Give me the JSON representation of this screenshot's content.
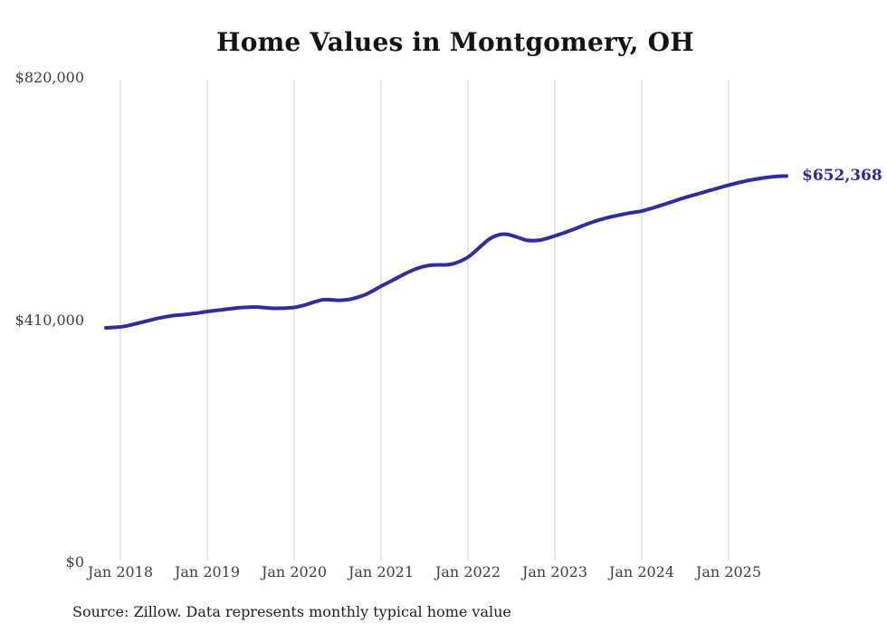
{
  "title": "Home Values in Montgomery, OH",
  "end_label": "$652,368",
  "source_note": "Source: Zillow. Data represents monthly typical home value",
  "colors": {
    "line": "#312d9b",
    "grid": "#cccccc",
    "tick_text": "#3f3f3f",
    "title_text": "#131313",
    "end_label_text": "#2e2a98",
    "background": "#ffffff"
  },
  "chart_data": {
    "type": "line",
    "title": "Home Values in Montgomery, OH",
    "xlabel": "",
    "ylabel": "",
    "ylim": [
      0,
      820000
    ],
    "grid": "vertical-only",
    "legend": "none",
    "y_ticks": [
      {
        "label": "$0",
        "value": 0
      },
      {
        "label": "$410,000",
        "value": 410000
      },
      {
        "label": "$820,000",
        "value": 820000
      }
    ],
    "x_ticks": [
      {
        "label": "Jan 2018",
        "month_index": 2
      },
      {
        "label": "Jan 2019",
        "month_index": 14
      },
      {
        "label": "Jan 2020",
        "month_index": 26
      },
      {
        "label": "Jan 2021",
        "month_index": 38
      },
      {
        "label": "Jan 2022",
        "month_index": 50
      },
      {
        "label": "Jan 2023",
        "month_index": 62
      },
      {
        "label": "Jan 2024",
        "month_index": 74
      },
      {
        "label": "Jan 2025",
        "month_index": 86
      }
    ],
    "series": [
      {
        "name": "Monthly typical home value",
        "frequency": "monthly",
        "start_month": "Nov 2017",
        "end_month": "Sep 2025",
        "final_value": 652368,
        "final_value_label": "$652,368",
        "values": [
          395500,
          396200,
          397000,
          399000,
          402000,
          405000,
          408000,
          411000,
          413500,
          415500,
          417000,
          418000,
          419500,
          421000,
          423000,
          424500,
          426000,
          427500,
          429000,
          430000,
          430500,
          430500,
          429500,
          428500,
          428500,
          429000,
          430000,
          432500,
          436000,
          440000,
          443000,
          443000,
          442000,
          442500,
          444500,
          448000,
          452500,
          459000,
          466000,
          472000,
          478500,
          485000,
          491000,
          496000,
          499500,
          501500,
          502000,
          502000,
          504000,
          508500,
          515000,
          525000,
          536000,
          546000,
          552000,
          554000,
          552000,
          548000,
          544000,
          543000,
          544000,
          547000,
          551000,
          555000,
          559500,
          564000,
          569000,
          573500,
          577500,
          581000,
          584000,
          586500,
          589000,
          591000,
          593000,
          596500,
          600000,
          604000,
          608000,
          612000,
          616000,
          619500,
          623000,
          626500,
          630000,
          633500,
          637000,
          640000,
          643000,
          645500,
          647500,
          649500,
          651000,
          652000,
          652368
        ]
      }
    ]
  }
}
